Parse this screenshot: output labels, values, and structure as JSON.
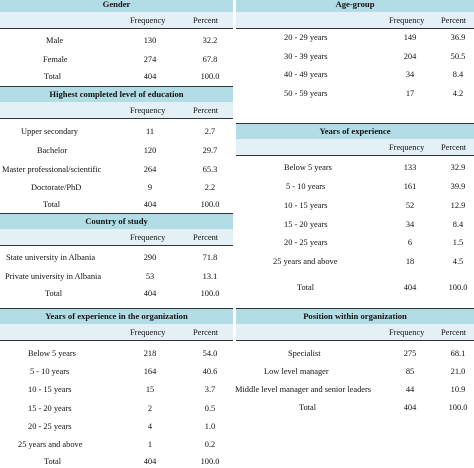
{
  "col_frequency": "Frequency",
  "col_percent": "Percent",
  "gender": {
    "title": "Gender",
    "rows": [
      {
        "label": "Male",
        "frequency": "130",
        "percent": "32.2"
      },
      {
        "label": "Female",
        "frequency": "274",
        "percent": "67.8"
      },
      {
        "label": "Total",
        "frequency": "404",
        "percent": "100.0"
      }
    ]
  },
  "age_group": {
    "title": "Age-group",
    "rows": [
      {
        "label": "20 - 29 years",
        "frequency": "149",
        "percent": "36.9"
      },
      {
        "label": "30 - 39 years",
        "frequency": "204",
        "percent": "50.5"
      },
      {
        "label": "40 - 49 years",
        "frequency": "34",
        "percent": "8.4"
      },
      {
        "label": "50 - 59 years",
        "frequency": "17",
        "percent": "4.2"
      }
    ]
  },
  "education": {
    "title": "Highest completed level of education",
    "rows": [
      {
        "label": "Upper secondary",
        "frequency": "11",
        "percent": "2.7"
      },
      {
        "label": "Bachelor",
        "frequency": "120",
        "percent": "29.7"
      },
      {
        "label": "Master professional/scientific",
        "frequency": "264",
        "percent": "65.3"
      },
      {
        "label": "Doctorate/PhD",
        "frequency": "9",
        "percent": "2.2"
      },
      {
        "label": "Total",
        "frequency": "404",
        "percent": "100.0"
      }
    ]
  },
  "years_experience": {
    "title": "Years of experience",
    "rows": [
      {
        "label": "Below 5 years",
        "frequency": "133",
        "percent": "32.9"
      },
      {
        "label": "5 - 10 years",
        "frequency": "161",
        "percent": "39.9"
      },
      {
        "label": "10 - 15 years",
        "frequency": "52",
        "percent": "12.9"
      },
      {
        "label": "15 - 20 years",
        "frequency": "34",
        "percent": "8.4"
      },
      {
        "label": "20 - 25 years",
        "frequency": "6",
        "percent": "1.5"
      },
      {
        "label": "25 years and above",
        "frequency": "18",
        "percent": "4.5"
      },
      {
        "label": "Total",
        "frequency": "404",
        "percent": "100.0"
      }
    ]
  },
  "country": {
    "title": "Country of study",
    "rows": [
      {
        "label": "State university in Albania",
        "frequency": "290",
        "percent": "71.8"
      },
      {
        "label": "Private university in Albania",
        "frequency": "53",
        "percent": "13.1"
      },
      {
        "label": "Total",
        "frequency": "404",
        "percent": "100.0"
      }
    ]
  },
  "org_experience": {
    "title": "Years of experience in the organization",
    "rows": [
      {
        "label": "Below 5 years",
        "frequency": "218",
        "percent": "54.0"
      },
      {
        "label": "5 - 10 years",
        "frequency": "164",
        "percent": "40.6"
      },
      {
        "label": "10 - 15 years",
        "frequency": "15",
        "percent": "3.7"
      },
      {
        "label": "15 - 20 years",
        "frequency": "2",
        "percent": "0.5"
      },
      {
        "label": "20 - 25 years",
        "frequency": "4",
        "percent": "1.0"
      },
      {
        "label": "25 years and above",
        "frequency": "1",
        "percent": "0.2"
      },
      {
        "label": "Total",
        "frequency": "404",
        "percent": "100.0"
      }
    ]
  },
  "position": {
    "title": "Position within organization",
    "rows": [
      {
        "label": "Specialist",
        "frequency": "275",
        "percent": "68.1"
      },
      {
        "label": "Low level manager",
        "frequency": "85",
        "percent": "21.0"
      },
      {
        "label": "Middle level manager and senior leaders",
        "frequency": "44",
        "percent": "10.9"
      },
      {
        "label": "Total",
        "frequency": "404",
        "percent": "100.0"
      }
    ]
  }
}
